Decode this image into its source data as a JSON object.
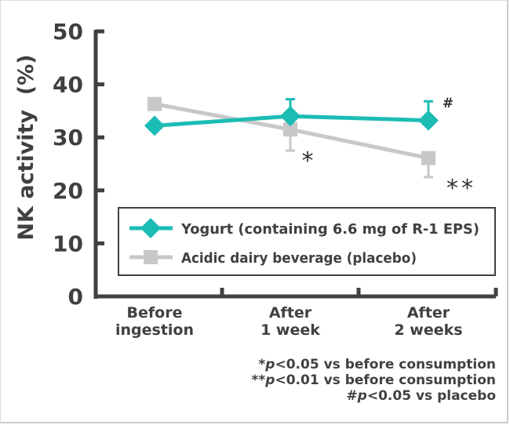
{
  "chart_data": {
    "type": "line",
    "title": "",
    "xlabel": "",
    "ylabel": "NK activity  (%)",
    "ylim": [
      0,
      50
    ],
    "yticks": [
      "0",
      "10",
      "20",
      "30",
      "40",
      "50"
    ],
    "categories": [
      "Before\ningestion",
      "After\n1 week",
      "After\n2 weeks"
    ],
    "series": [
      {
        "name": "Yogurt (containing 6.6 mg of R-1 EPS)",
        "color": "#1bbcb4",
        "marker": "diamond",
        "values": [
          32.2,
          34.0,
          33.2
        ],
        "error_up": [
          0,
          3.2,
          3.6
        ],
        "error_down": [
          0,
          0,
          0
        ]
      },
      {
        "name": "Acidic dairy beverage (placebo)",
        "color": "#c8c8c8",
        "marker": "square",
        "values": [
          36.3,
          31.5,
          26.1
        ],
        "error_up": [
          0,
          0,
          0
        ],
        "error_down": [
          0,
          4.0,
          3.6
        ]
      }
    ],
    "annotations": [
      {
        "text": "*",
        "at_category": 1,
        "note": "placebo"
      },
      {
        "text": "**",
        "at_category": 2,
        "note": "placebo"
      },
      {
        "text": "#",
        "at_category": 2,
        "note": "yogurt"
      }
    ],
    "legend_position": "bottom-right",
    "grid": false,
    "footnotes": [
      {
        "prefix": "*",
        "p": "p",
        "rest": "<0.05 vs before consumption"
      },
      {
        "prefix": "**",
        "p": "p",
        "rest": "<0.01 vs before consumption"
      },
      {
        "prefix": "#",
        "p": "p",
        "rest": "<0.05 vs placebo"
      }
    ]
  }
}
